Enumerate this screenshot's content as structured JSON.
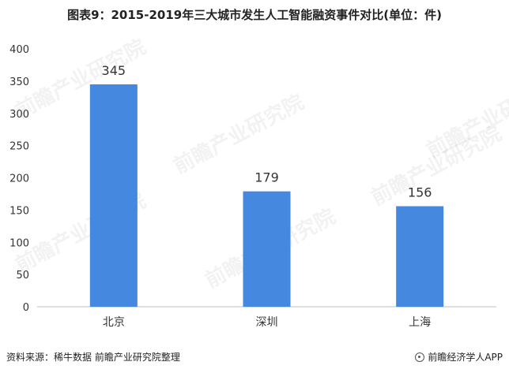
{
  "title": "图表9：2015-2019年三大城市发生人工智能融资事件对比(单位：件)",
  "source": "资料来源：稀牛数据 前瞻产业研究院整理",
  "publisher": "前瞻经济学人APP",
  "watermark": "前瞻产业研究院",
  "colors": {
    "bar": "#4488e0",
    "axis": "#bfbfbf",
    "text": "#333333"
  },
  "chart_data": {
    "type": "bar",
    "title": "图表9：2015-2019年三大城市发生人工智能融资事件对比(单位：件)",
    "categories": [
      "北京",
      "深圳",
      "上海"
    ],
    "values": [
      345,
      179,
      156
    ],
    "ylim": [
      0,
      400
    ],
    "yticks": [
      0,
      50,
      100,
      150,
      200,
      250,
      300,
      350,
      400
    ],
    "xlabel": "",
    "ylabel": "",
    "grid": false,
    "data_labels": true
  }
}
